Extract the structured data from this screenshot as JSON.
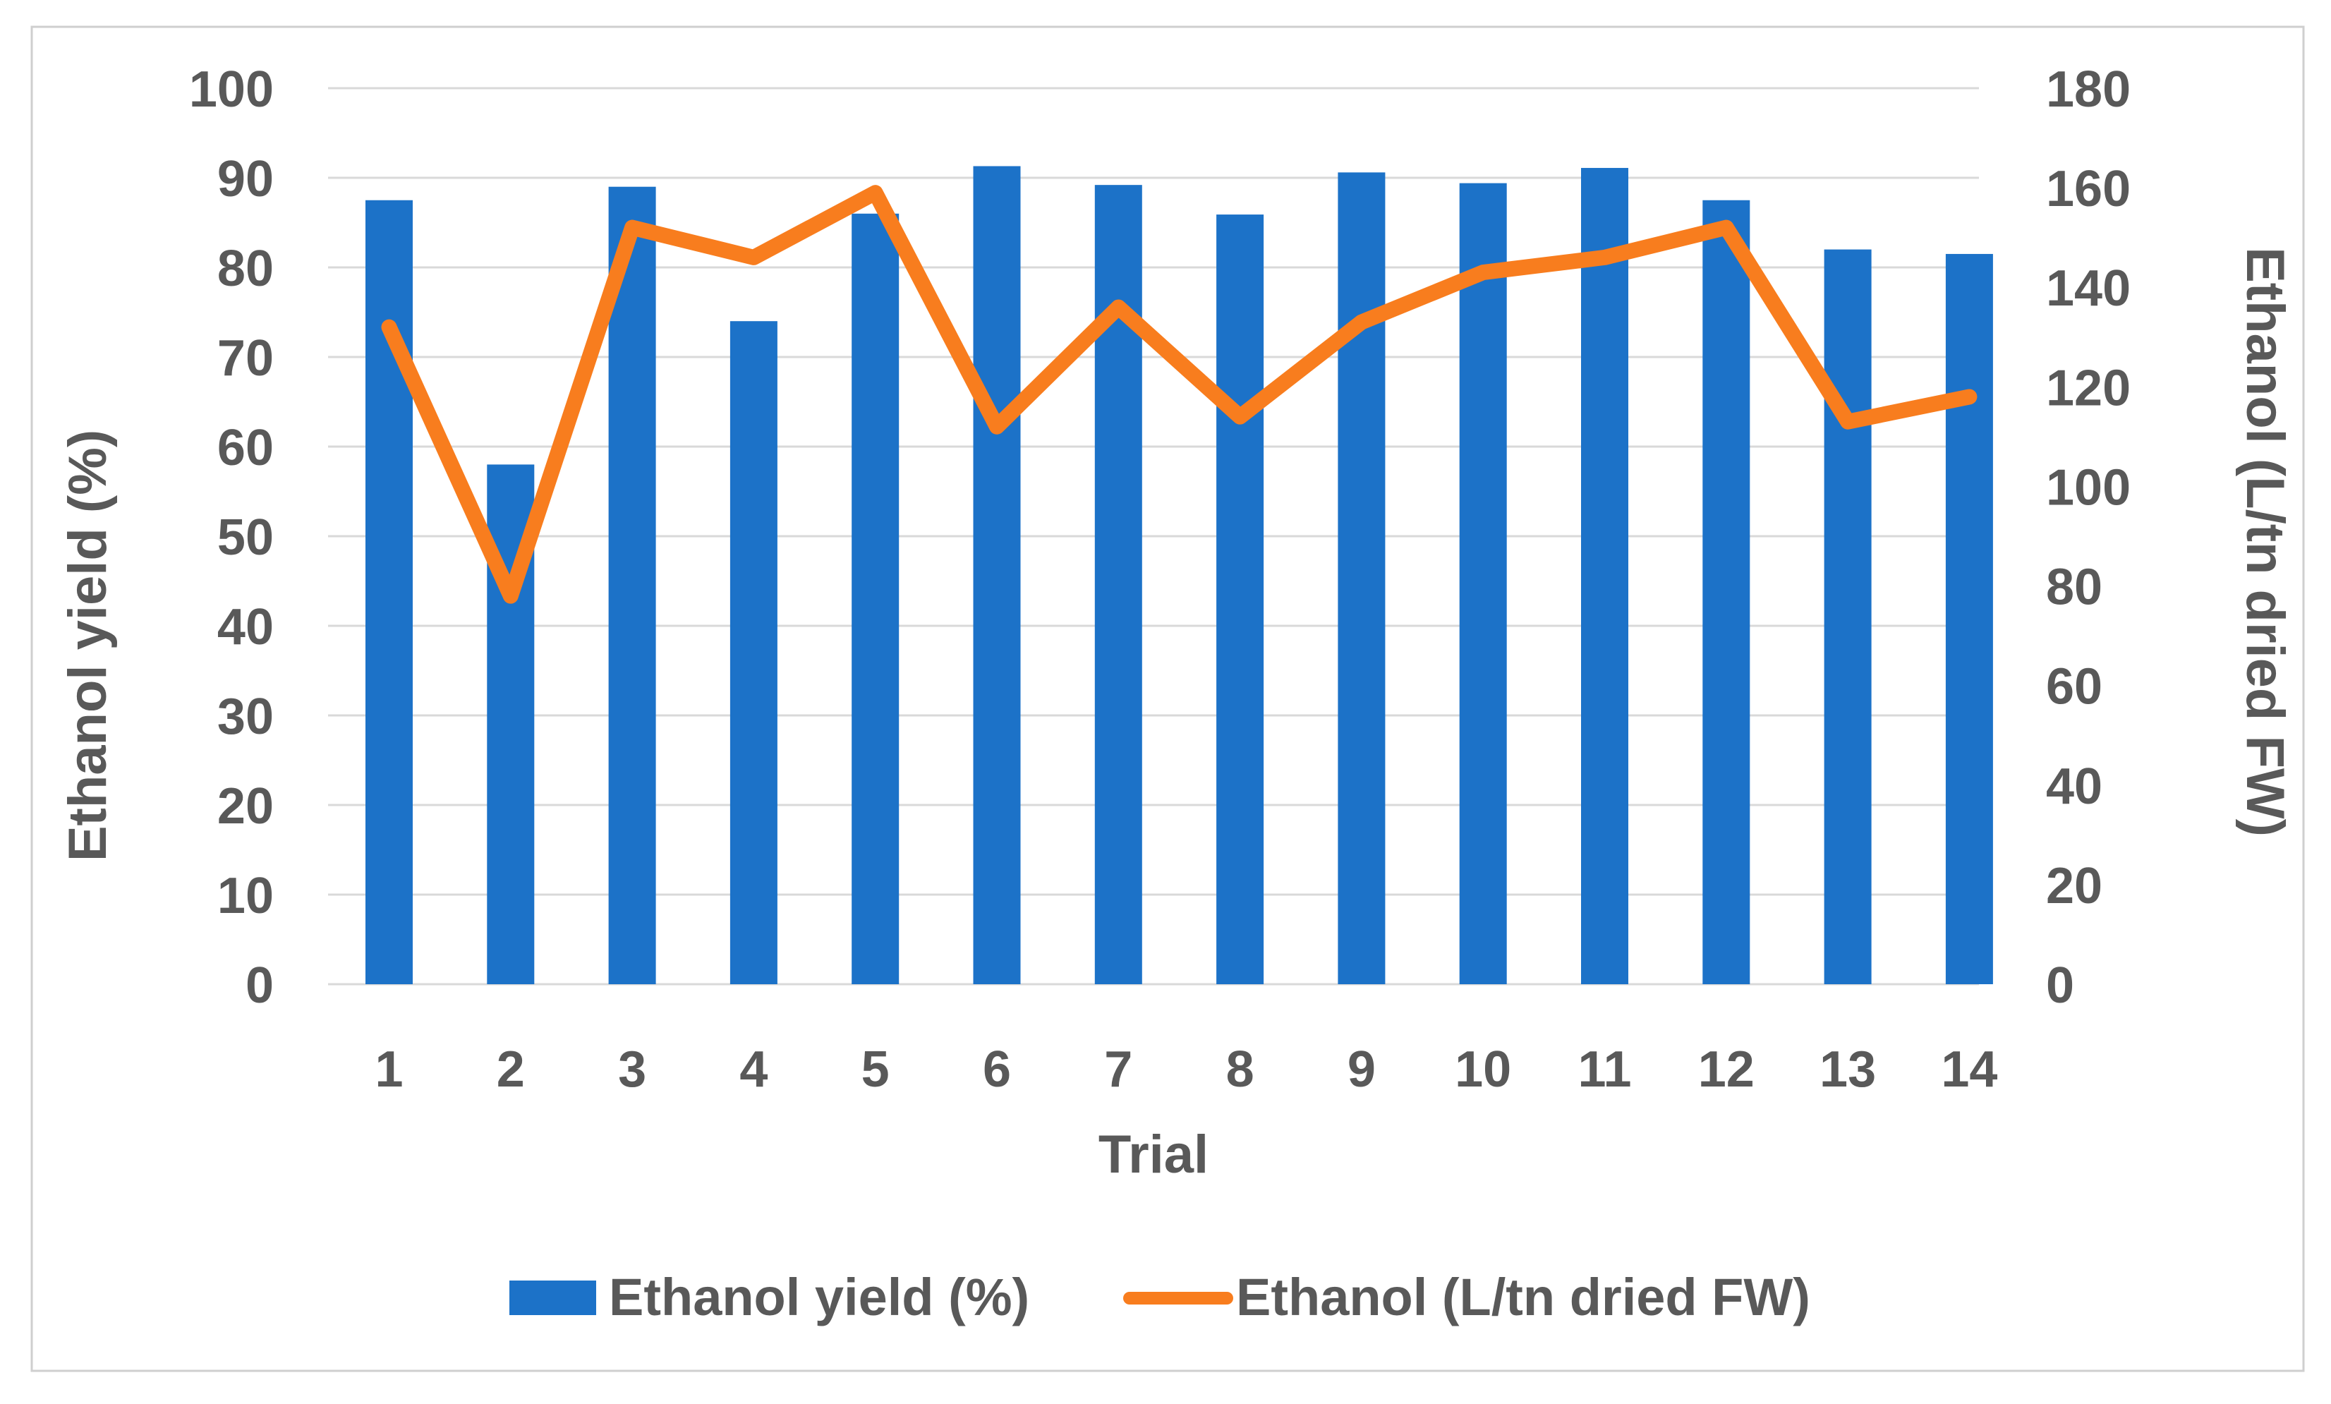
{
  "figure": {
    "background": "#FFFFFF",
    "border_color": "#CFCFCF",
    "grid_color": "#D9D9D9",
    "text_color": "#595959"
  },
  "chart_data": {
    "type": "bar",
    "subtype": "bar+line dual-axis combo",
    "title": "",
    "xlabel": "Trial",
    "categories": [
      "1",
      "2",
      "3",
      "4",
      "5",
      "6",
      "7",
      "8",
      "9",
      "10",
      "11",
      "12",
      "13",
      "14"
    ],
    "series": [
      {
        "name": "Ethanol yield (%)",
        "type": "bar",
        "axis": "left",
        "color": "#1C72C8",
        "values": [
          87.5,
          58,
          89,
          74,
          86,
          91.3,
          89.2,
          85.9,
          90.6,
          89.4,
          91.1,
          87.5,
          82,
          81.5
        ]
      },
      {
        "name": "Ethanol (L/tn dried FW)",
        "type": "line",
        "axis": "right",
        "color": "#F87D1E",
        "values": [
          132,
          78,
          152,
          146,
          159,
          112,
          136,
          114,
          133,
          143,
          146,
          152,
          113,
          118
        ]
      }
    ],
    "left_axis": {
      "label": "Ethanol yield (%)",
      "min": 0,
      "max": 100,
      "step": 10
    },
    "right_axis": {
      "label": "Ethanol (L/tn dried FW)",
      "min": 0,
      "max": 180,
      "step": 20
    },
    "grid": "horizontal gridlines on",
    "legend_position": "bottom"
  },
  "legend": {
    "items": [
      {
        "label": "Ethanol yield (%)",
        "swatch": "bar-square"
      },
      {
        "label": "Ethanol (L/tn dried FW)",
        "swatch": "line-segment"
      }
    ]
  }
}
